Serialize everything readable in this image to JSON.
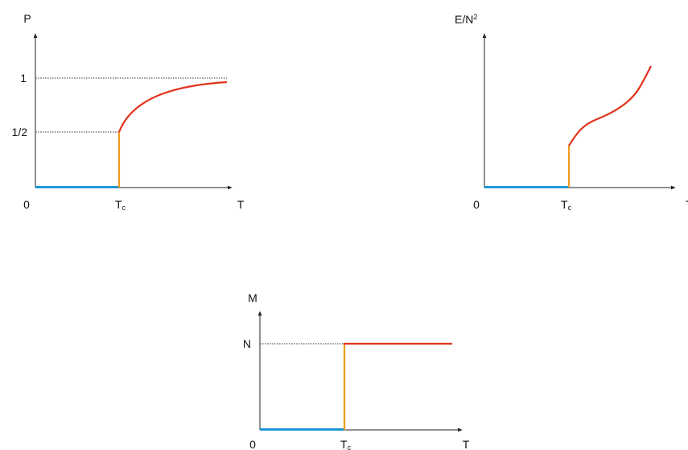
{
  "colors": {
    "axis": "#222222",
    "guide": "#333333",
    "low_phase": "#2196d9",
    "jump": "#f29a1c",
    "high_phase": "#e3321b"
  },
  "plot_p": {
    "y_axis_label": "P",
    "x_axis_label": "T",
    "origin_label": "0",
    "tc_label_main": "T",
    "tc_label_sub": "c",
    "tick_one": "1",
    "tick_half": "1/2"
  },
  "plot_e": {
    "y_axis_label_main": "E/N",
    "y_axis_label_sup": "2",
    "x_axis_label": "T",
    "origin_label": "0",
    "tc_label_main": "T",
    "tc_label_sub": "c"
  },
  "plot_m": {
    "y_axis_label": "M",
    "x_axis_label": "T",
    "origin_label": "0",
    "tc_label_main": "T",
    "tc_label_sub": "c",
    "tick_n": "N"
  }
}
